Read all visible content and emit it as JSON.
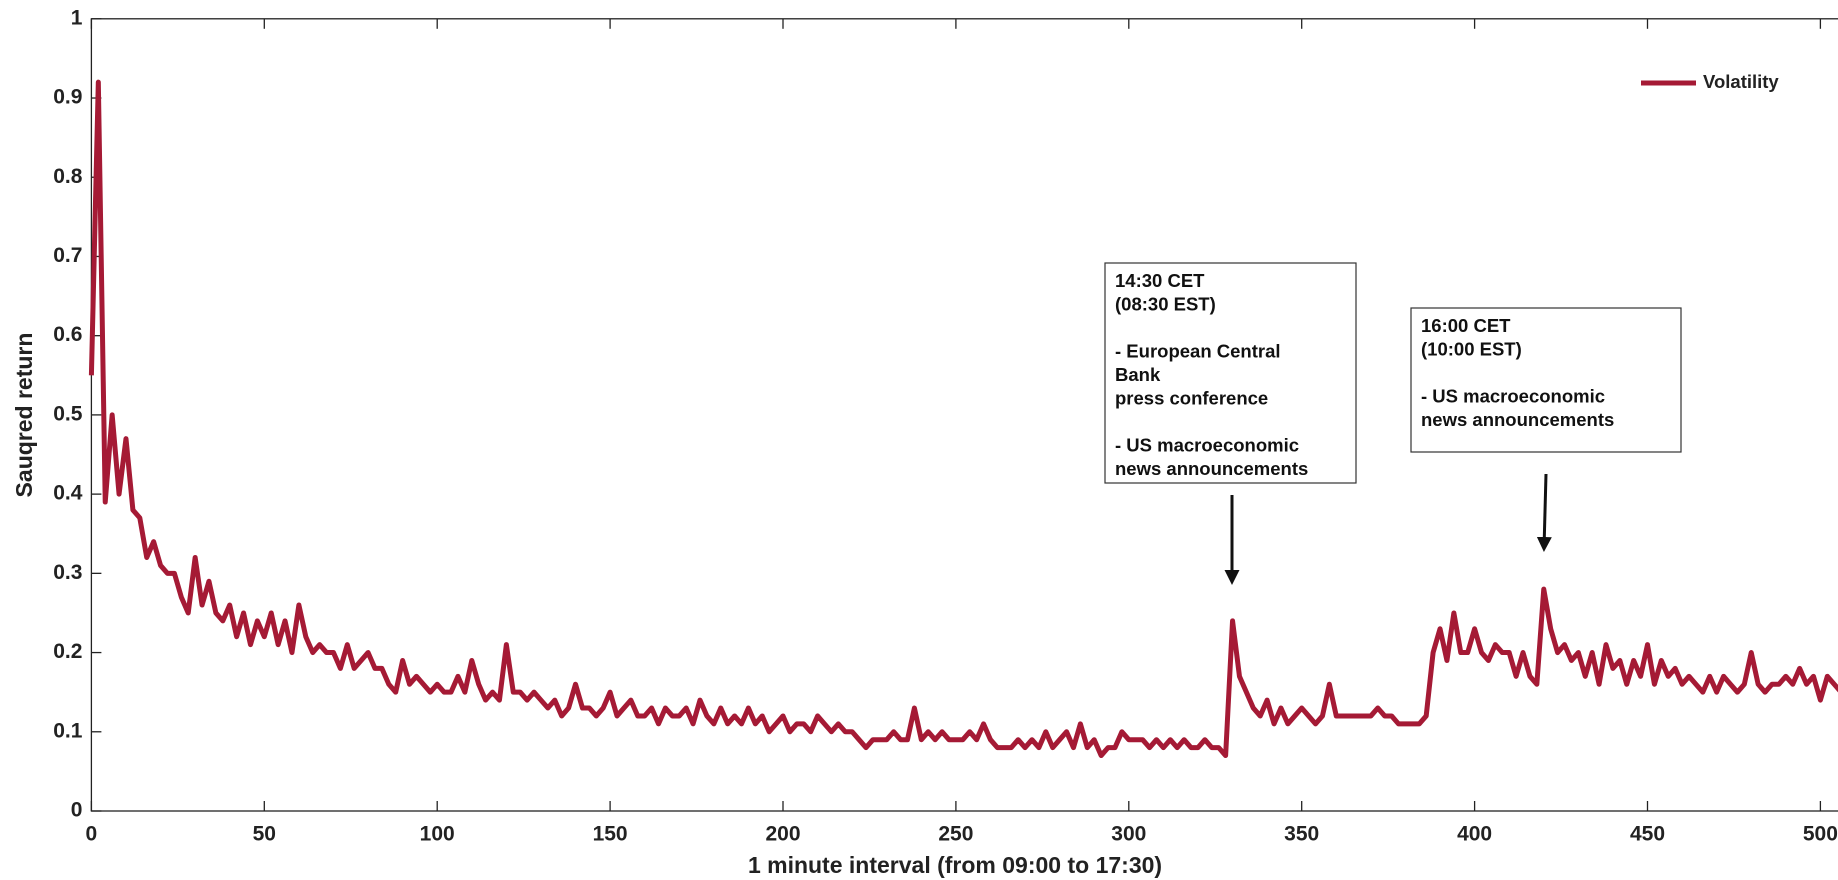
{
  "chart_data": {
    "type": "line",
    "xlabel": "1 minute interval (from 09:00 to 17:30)",
    "ylabel": "Sauqred return",
    "xlim": [
      0,
      510
    ],
    "ylim": [
      0,
      1
    ],
    "xticks": [
      0,
      50,
      100,
      150,
      200,
      250,
      300,
      350,
      400,
      450,
      500
    ],
    "yticks": [
      0,
      0.1,
      0.2,
      0.3,
      0.4,
      0.5,
      0.6,
      0.7,
      0.8,
      0.9,
      1
    ],
    "legend": "upper right",
    "x": [
      0,
      2,
      4,
      6,
      8,
      10,
      12,
      14,
      16,
      18,
      20,
      22,
      24,
      26,
      28,
      30,
      32,
      34,
      36,
      38,
      40,
      42,
      44,
      46,
      48,
      50,
      52,
      54,
      56,
      58,
      60,
      62,
      64,
      66,
      68,
      70,
      72,
      74,
      76,
      78,
      80,
      82,
      84,
      86,
      88,
      90,
      92,
      94,
      96,
      98,
      100,
      102,
      104,
      106,
      108,
      110,
      112,
      114,
      116,
      118,
      120,
      122,
      124,
      126,
      128,
      130,
      132,
      134,
      136,
      138,
      140,
      142,
      144,
      146,
      148,
      150,
      152,
      154,
      156,
      158,
      160,
      162,
      164,
      166,
      168,
      170,
      172,
      174,
      176,
      178,
      180,
      182,
      184,
      186,
      188,
      190,
      192,
      194,
      196,
      198,
      200,
      202,
      204,
      206,
      208,
      210,
      212,
      214,
      216,
      218,
      220,
      222,
      224,
      226,
      228,
      230,
      232,
      234,
      236,
      238,
      240,
      242,
      244,
      246,
      248,
      250,
      252,
      254,
      256,
      258,
      260,
      262,
      264,
      266,
      268,
      270,
      272,
      274,
      276,
      278,
      280,
      282,
      284,
      286,
      288,
      290,
      292,
      294,
      296,
      298,
      300,
      302,
      304,
      306,
      308,
      310,
      312,
      314,
      316,
      318,
      320,
      322,
      324,
      326,
      328,
      330,
      332,
      334,
      336,
      338,
      340,
      342,
      344,
      346,
      348,
      350,
      352,
      354,
      356,
      358,
      360,
      362,
      364,
      366,
      368,
      370,
      372,
      374,
      376,
      378,
      380,
      382,
      384,
      386,
      388,
      390,
      392,
      394,
      396,
      398,
      400,
      402,
      404,
      406,
      408,
      410,
      412,
      414,
      416,
      418,
      420,
      422,
      424,
      426,
      428,
      430,
      432,
      434,
      436,
      438,
      440,
      442,
      444,
      446,
      448,
      450,
      452,
      454,
      456,
      458,
      460,
      462,
      464,
      466,
      468,
      470,
      472,
      474,
      476,
      478,
      480,
      482,
      484,
      486,
      488,
      490,
      492,
      494,
      496,
      498,
      500,
      502,
      504,
      506,
      508,
      510
    ],
    "series": [
      {
        "name": "Volatility",
        "color": "#a51a35",
        "values": [
          0.55,
          0.92,
          0.39,
          0.5,
          0.4,
          0.47,
          0.38,
          0.37,
          0.32,
          0.34,
          0.31,
          0.3,
          0.3,
          0.27,
          0.25,
          0.32,
          0.26,
          0.29,
          0.25,
          0.24,
          0.26,
          0.22,
          0.25,
          0.21,
          0.24,
          0.22,
          0.25,
          0.21,
          0.24,
          0.2,
          0.26,
          0.22,
          0.2,
          0.21,
          0.2,
          0.2,
          0.18,
          0.21,
          0.18,
          0.19,
          0.2,
          0.18,
          0.18,
          0.16,
          0.15,
          0.19,
          0.16,
          0.17,
          0.16,
          0.15,
          0.16,
          0.15,
          0.15,
          0.17,
          0.15,
          0.19,
          0.16,
          0.14,
          0.15,
          0.14,
          0.21,
          0.15,
          0.15,
          0.14,
          0.15,
          0.14,
          0.13,
          0.14,
          0.12,
          0.13,
          0.16,
          0.13,
          0.13,
          0.12,
          0.13,
          0.15,
          0.12,
          0.13,
          0.14,
          0.12,
          0.12,
          0.13,
          0.11,
          0.13,
          0.12,
          0.12,
          0.13,
          0.11,
          0.14,
          0.12,
          0.11,
          0.13,
          0.11,
          0.12,
          0.11,
          0.13,
          0.11,
          0.12,
          0.1,
          0.11,
          0.12,
          0.1,
          0.11,
          0.11,
          0.1,
          0.12,
          0.11,
          0.1,
          0.11,
          0.1,
          0.1,
          0.09,
          0.08,
          0.09,
          0.09,
          0.09,
          0.1,
          0.09,
          0.09,
          0.13,
          0.09,
          0.1,
          0.09,
          0.1,
          0.09,
          0.09,
          0.09,
          0.1,
          0.09,
          0.11,
          0.09,
          0.08,
          0.08,
          0.08,
          0.09,
          0.08,
          0.09,
          0.08,
          0.1,
          0.08,
          0.09,
          0.1,
          0.08,
          0.11,
          0.08,
          0.09,
          0.07,
          0.08,
          0.08,
          0.1,
          0.09,
          0.09,
          0.09,
          0.08,
          0.09,
          0.08,
          0.09,
          0.08,
          0.09,
          0.08,
          0.08,
          0.09,
          0.08,
          0.08,
          0.07,
          0.24,
          0.17,
          0.15,
          0.13,
          0.12,
          0.14,
          0.11,
          0.13,
          0.11,
          0.12,
          0.13,
          0.12,
          0.11,
          0.12,
          0.16,
          0.12,
          0.12,
          0.12,
          0.12,
          0.12,
          0.12,
          0.13,
          0.12,
          0.12,
          0.11,
          0.11,
          0.11,
          0.11,
          0.12,
          0.2,
          0.23,
          0.19,
          0.25,
          0.2,
          0.2,
          0.23,
          0.2,
          0.19,
          0.21,
          0.2,
          0.2,
          0.17,
          0.2,
          0.17,
          0.16,
          0.28,
          0.23,
          0.2,
          0.21,
          0.19,
          0.2,
          0.17,
          0.2,
          0.16,
          0.21,
          0.18,
          0.19,
          0.16,
          0.19,
          0.17,
          0.21,
          0.16,
          0.19,
          0.17,
          0.18,
          0.16,
          0.17,
          0.16,
          0.15,
          0.17,
          0.15,
          0.17,
          0.16,
          0.15,
          0.16,
          0.2,
          0.16,
          0.15,
          0.16,
          0.16,
          0.17,
          0.16,
          0.18,
          0.16,
          0.17,
          0.14,
          0.17,
          0.16,
          0.15,
          0.17,
          0.16
        ]
      }
    ],
    "annotations": [
      {
        "paragraphs": [
          [
            "14:30 CET",
            "(08:30 EST)"
          ],
          [
            "- European Central",
            "Bank",
            "press conference"
          ],
          [
            "- US macroeconomic",
            "news announcements"
          ]
        ]
      },
      {
        "paragraphs": [
          [
            "16:00 CET",
            "(10:00 EST)"
          ],
          [
            "- US macroeconomic",
            "news announcements"
          ]
        ]
      }
    ]
  }
}
